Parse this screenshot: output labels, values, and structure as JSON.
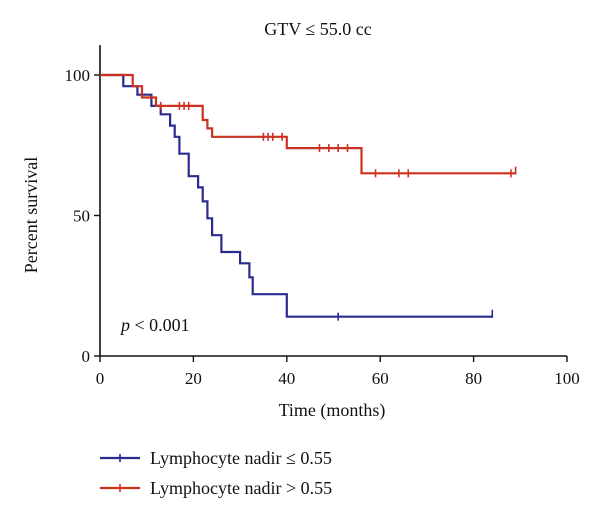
{
  "chart_data": {
    "type": "line",
    "title": "GTV ≤ 55.0 cc",
    "xlabel": "Time (months)",
    "ylabel": "Percent survival",
    "xlim": [
      0,
      100
    ],
    "ylim": [
      0,
      100
    ],
    "x_ticks": [
      "0",
      "20",
      "40",
      "60",
      "80",
      "100"
    ],
    "y_ticks": [
      "0",
      "50",
      "100"
    ],
    "annotation": "p < 0.001",
    "legend_position": "bottom-left",
    "grid": false,
    "series": [
      {
        "name": "Lymphocyte nadir ≤ 0.55",
        "color": "#2b2a8e",
        "steps": [
          [
            0,
            100
          ],
          [
            5,
            100
          ],
          [
            5,
            96
          ],
          [
            8,
            96
          ],
          [
            8,
            93
          ],
          [
            11,
            93
          ],
          [
            11,
            89
          ],
          [
            13,
            89
          ],
          [
            13,
            86
          ],
          [
            15,
            86
          ],
          [
            15,
            82
          ],
          [
            16,
            82
          ],
          [
            16,
            78
          ],
          [
            17,
            78
          ],
          [
            17,
            72
          ],
          [
            19,
            72
          ],
          [
            19,
            64
          ],
          [
            21,
            64
          ],
          [
            21,
            60
          ],
          [
            22,
            60
          ],
          [
            22,
            55
          ],
          [
            23,
            55
          ],
          [
            23,
            49
          ],
          [
            24,
            49
          ],
          [
            24,
            43
          ],
          [
            26,
            43
          ],
          [
            26,
            37
          ],
          [
            30,
            37
          ],
          [
            30,
            33
          ],
          [
            32,
            33
          ],
          [
            32,
            28
          ],
          [
            32.7,
            28
          ],
          [
            32.7,
            22
          ],
          [
            40,
            22
          ],
          [
            40,
            14
          ],
          [
            84,
            14
          ]
        ],
        "censored": [
          [
            51,
            14
          ],
          [
            84,
            15
          ]
        ]
      },
      {
        "name": "Lymphocyte nadir > 0.55",
        "color": "#cc3222",
        "steps": [
          [
            0,
            100
          ],
          [
            7,
            100
          ],
          [
            7,
            96
          ],
          [
            9,
            96
          ],
          [
            9,
            92
          ],
          [
            12,
            92
          ],
          [
            12,
            89
          ],
          [
            22,
            89
          ],
          [
            22,
            84
          ],
          [
            23,
            84
          ],
          [
            23,
            81
          ],
          [
            24,
            81
          ],
          [
            24,
            78
          ],
          [
            40,
            78
          ],
          [
            40,
            74
          ],
          [
            56,
            74
          ],
          [
            56,
            65
          ],
          [
            89,
            65
          ]
        ],
        "censored": [
          [
            13,
            89
          ],
          [
            17,
            89
          ],
          [
            18,
            89
          ],
          [
            19,
            89
          ],
          [
            35,
            78
          ],
          [
            36,
            78
          ],
          [
            37,
            78
          ],
          [
            39,
            78
          ],
          [
            47,
            74
          ],
          [
            49,
            74
          ],
          [
            51,
            74
          ],
          [
            53,
            74
          ],
          [
            59,
            65
          ],
          [
            64,
            65
          ],
          [
            66,
            65
          ],
          [
            88,
            65
          ],
          [
            89,
            66
          ]
        ]
      }
    ]
  }
}
